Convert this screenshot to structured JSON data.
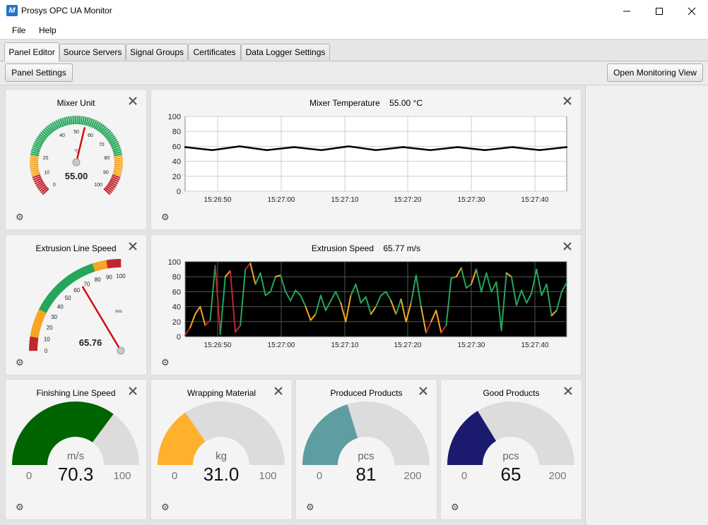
{
  "window": {
    "title": "Prosys OPC UA Monitor",
    "logo_letter": "M"
  },
  "menu": [
    "File",
    "Help"
  ],
  "tabs": [
    "Panel Editor",
    "Source Servers",
    "Signal Groups",
    "Certificates",
    "Data Logger Settings"
  ],
  "toolbar": {
    "panel_settings": "Panel Settings",
    "open_monitoring": "Open Monitoring View"
  },
  "panels": {
    "mixer_unit": {
      "title": "Mixer Unit",
      "value": "55.00",
      "unit": "°C",
      "ticks": [
        "0",
        "10",
        "20",
        "40",
        "50",
        "60",
        "70",
        "80",
        "90",
        "100"
      ]
    },
    "mixer_temperature": {
      "title": "Mixer Temperature",
      "value": "55.00 °C",
      "y_ticks": [
        "100",
        "80",
        "60",
        "40",
        "20",
        "0"
      ],
      "x_ticks": [
        "15:26:50",
        "15:27:00",
        "15:27:10",
        "15:27:20",
        "15:27:30",
        "15:27:40"
      ]
    },
    "extrusion_line_speed": {
      "title": "Extrusion Line Speed",
      "value": "65.76",
      "unit": "m/s",
      "ticks": [
        "0",
        "10",
        "20",
        "30",
        "40",
        "50",
        "60",
        "70",
        "80",
        "90",
        "100"
      ]
    },
    "extrusion_speed": {
      "title": "Extrusion Speed",
      "value": "65.77 m/s",
      "y_ticks": [
        "100",
        "80",
        "60",
        "40",
        "20",
        "0"
      ],
      "x_ticks": [
        "15:26:50",
        "15:27:00",
        "15:27:10",
        "15:27:20",
        "15:27:30",
        "15:27:40"
      ]
    },
    "finishing_line_speed": {
      "title": "Finishing Line Speed",
      "unit": "m/s",
      "value": "70.3",
      "min": "0",
      "max": "100"
    },
    "wrapping_material": {
      "title": "Wrapping Material",
      "unit": "kg",
      "value": "31.0",
      "min": "0",
      "max": "100"
    },
    "produced_products": {
      "title": "Produced Products",
      "unit": "pcs",
      "value": "81",
      "min": "0",
      "max": "200"
    },
    "good_products": {
      "title": "Good Products",
      "unit": "pcs",
      "value": "65",
      "min": "0",
      "max": "200"
    }
  },
  "chart_data": [
    {
      "type": "line",
      "title": "Mixer Temperature",
      "x": [
        "15:26:42",
        "15:26:46",
        "15:26:51",
        "15:26:55",
        "15:27:00",
        "15:27:04",
        "15:27:08",
        "15:27:13",
        "15:27:17",
        "15:27:21",
        "15:27:25",
        "15:27:29",
        "15:27:33",
        "15:27:37",
        "15:27:41"
      ],
      "series": [
        {
          "values": [
            59,
            55,
            60,
            55,
            59,
            55,
            60,
            55,
            59,
            55,
            59,
            55,
            59,
            55,
            59
          ],
          "color": "#000000"
        }
      ],
      "ylim": [
        0,
        100
      ],
      "grid": true
    },
    {
      "type": "line",
      "title": "Extrusion Speed",
      "x_range": [
        "15:26:42",
        "15:27:43"
      ],
      "series": [
        {
          "values": [
            2,
            12,
            30,
            40,
            15,
            22,
            95,
            3,
            80,
            88,
            6,
            15,
            90,
            98,
            70,
            85,
            55,
            60,
            80,
            82,
            60,
            48,
            62,
            55,
            40,
            22,
            30,
            55,
            35,
            48,
            60,
            45,
            20,
            55,
            70,
            45,
            53,
            30,
            40,
            55,
            60,
            48,
            30,
            50,
            20,
            45,
            82,
            40,
            5,
            20,
            35,
            5,
            15,
            78,
            80,
            92,
            65,
            70,
            90,
            60,
            85,
            60,
            73,
            8,
            85,
            80,
            42,
            62,
            45,
            58,
            90,
            55,
            70,
            28,
            35,
            60,
            72
          ],
          "color_by_value": {
            "green": "#26a65b",
            "orange": "#f5a623",
            "red": "#c0272d"
          }
        }
      ],
      "ylim": [
        0,
        100
      ],
      "background": "#000000",
      "grid": true
    }
  ],
  "gauges": {
    "mixer_unit": {
      "value": 55.0,
      "min": 0,
      "max": 100
    },
    "extrusion_line_speed": {
      "value": 65.76,
      "min": 0,
      "max": 100
    },
    "finishing_line_speed": {
      "value": 70.3,
      "min": 0,
      "max": 100,
      "color": "#006400"
    },
    "wrapping_material": {
      "value": 31.0,
      "min": 0,
      "max": 100,
      "color": "#ffb12e"
    },
    "produced_products": {
      "value": 81,
      "min": 0,
      "max": 200,
      "color": "#5f9ea0"
    },
    "good_products": {
      "value": 65,
      "min": 0,
      "max": 200,
      "color": "#1a1a6e"
    }
  },
  "colors": {
    "gauge_track": "#dcdcdc",
    "green": "#26a65b",
    "orange": "#f5a623",
    "red": "#c0272d"
  }
}
